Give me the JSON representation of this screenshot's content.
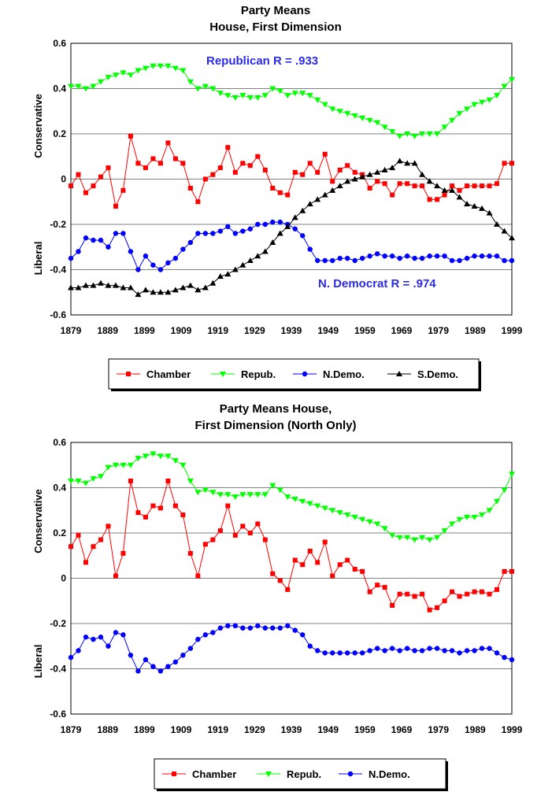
{
  "colors": {
    "chamber": "#ff0000",
    "repub": "#00ff00",
    "ndemo": "#0000ff",
    "sdemo": "#000000",
    "annotation": "#2a2ae8",
    "grid": "#808080"
  },
  "chart_data": [
    {
      "type": "line",
      "title_lines": [
        "Party Means",
        "House, First Dimension"
      ],
      "ylim": [
        -0.6,
        0.6
      ],
      "xlim": [
        1879,
        1999
      ],
      "y_ticks": [
        "0.6",
        "0.4",
        "0.2",
        "0",
        "-0.2",
        "-0.4",
        "-0.6"
      ],
      "x_ticks": [
        "1879",
        "1889",
        "1899",
        "1909",
        "1919",
        "1929",
        "1939",
        "1949",
        "1959",
        "1969",
        "1979",
        "1989",
        "1999"
      ],
      "ylabel_top": "Conservative",
      "ylabel_bottom": "Liberal",
      "annotations": [
        "Republican    R = .933",
        "N. Democrat    R = .974"
      ],
      "legend": [
        "Chamber",
        "Repub.",
        "N.Demo.",
        "S.Demo."
      ],
      "series": [
        {
          "name": "Chamber",
          "values": [
            -0.03,
            0.02,
            -0.06,
            -0.03,
            0.01,
            0.05,
            -0.12,
            -0.05,
            0.19,
            0.07,
            0.05,
            0.09,
            0.07,
            0.16,
            0.09,
            0.07,
            -0.04,
            -0.1,
            0.0,
            0.02,
            0.05,
            0.14,
            0.03,
            0.07,
            0.06,
            0.1,
            0.04,
            -0.04,
            -0.06,
            -0.07,
            0.03,
            0.02,
            0.07,
            0.03,
            0.11,
            -0.01,
            0.04,
            0.06,
            0.03,
            0.02,
            -0.04,
            -0.01,
            -0.02,
            -0.07,
            -0.02,
            -0.02,
            -0.03,
            -0.03,
            -0.09,
            -0.09,
            -0.07,
            -0.03,
            -0.05,
            -0.03,
            -0.03,
            -0.03,
            -0.03,
            -0.02,
            0.07,
            0.07
          ]
        },
        {
          "name": "Repub.",
          "values": [
            0.41,
            0.41,
            0.4,
            0.41,
            0.43,
            0.45,
            0.46,
            0.47,
            0.46,
            0.48,
            0.49,
            0.5,
            0.5,
            0.5,
            0.49,
            0.48,
            0.43,
            0.4,
            0.41,
            0.4,
            0.38,
            0.37,
            0.36,
            0.37,
            0.36,
            0.36,
            0.37,
            0.4,
            0.39,
            0.37,
            0.38,
            0.38,
            0.37,
            0.35,
            0.33,
            0.31,
            0.3,
            0.29,
            0.28,
            0.27,
            0.26,
            0.25,
            0.23,
            0.21,
            0.19,
            0.2,
            0.19,
            0.2,
            0.2,
            0.2,
            0.23,
            0.26,
            0.29,
            0.31,
            0.33,
            0.34,
            0.35,
            0.37,
            0.41,
            0.44
          ]
        },
        {
          "name": "N.Demo.",
          "values": [
            -0.35,
            -0.32,
            -0.26,
            -0.27,
            -0.27,
            -0.3,
            -0.24,
            -0.24,
            -0.32,
            -0.4,
            -0.34,
            -0.38,
            -0.4,
            -0.37,
            -0.35,
            -0.31,
            -0.28,
            -0.24,
            -0.24,
            -0.24,
            -0.23,
            -0.21,
            -0.24,
            -0.23,
            -0.22,
            -0.2,
            -0.2,
            -0.19,
            -0.19,
            -0.2,
            -0.22,
            -0.25,
            -0.31,
            -0.36,
            -0.36,
            -0.36,
            -0.35,
            -0.35,
            -0.36,
            -0.35,
            -0.34,
            -0.33,
            -0.34,
            -0.34,
            -0.35,
            -0.34,
            -0.35,
            -0.35,
            -0.34,
            -0.34,
            -0.34,
            -0.36,
            -0.36,
            -0.35,
            -0.34,
            -0.34,
            -0.34,
            -0.34,
            -0.36,
            -0.36
          ]
        },
        {
          "name": "S.Demo.",
          "values": [
            -0.48,
            -0.48,
            -0.47,
            -0.47,
            -0.46,
            -0.47,
            -0.47,
            -0.48,
            -0.48,
            -0.51,
            -0.49,
            -0.5,
            -0.5,
            -0.5,
            -0.49,
            -0.48,
            -0.47,
            -0.49,
            -0.48,
            -0.46,
            -0.43,
            -0.42,
            -0.4,
            -0.38,
            -0.36,
            -0.34,
            -0.32,
            -0.28,
            -0.24,
            -0.21,
            -0.17,
            -0.14,
            -0.11,
            -0.09,
            -0.07,
            -0.05,
            -0.03,
            -0.01,
            0.0,
            0.01,
            0.02,
            0.03,
            0.04,
            0.05,
            0.08,
            0.07,
            0.07,
            0.02,
            -0.01,
            -0.03,
            -0.05,
            -0.05,
            -0.08,
            -0.11,
            -0.12,
            -0.13,
            -0.15,
            -0.2,
            -0.23,
            -0.26
          ]
        }
      ]
    },
    {
      "type": "line",
      "title_lines": [
        "Party Means House,",
        "First Dimension (North Only)"
      ],
      "ylim": [
        -0.6,
        0.6
      ],
      "xlim": [
        1879,
        1999
      ],
      "y_ticks": [
        "0.6",
        "0.4",
        "0.2",
        "0",
        "-0.2",
        "-0.4",
        "-0.6"
      ],
      "x_ticks": [
        "1879",
        "1889",
        "1899",
        "1909",
        "1919",
        "1929",
        "1939",
        "1949",
        "1959",
        "1969",
        "1979",
        "1989",
        "1999"
      ],
      "ylabel_top": "Conservative",
      "ylabel_bottom": "Liberal",
      "annotations": [],
      "legend": [
        "Chamber",
        "Repub.",
        "N.Demo."
      ],
      "series": [
        {
          "name": "Chamber",
          "values": [
            0.14,
            0.19,
            0.07,
            0.14,
            0.17,
            0.23,
            0.01,
            0.11,
            0.43,
            0.29,
            0.27,
            0.32,
            0.31,
            0.43,
            0.32,
            0.28,
            0.11,
            0.01,
            0.15,
            0.17,
            0.21,
            0.32,
            0.19,
            0.23,
            0.2,
            0.24,
            0.17,
            0.02,
            -0.01,
            -0.05,
            0.08,
            0.06,
            0.12,
            0.07,
            0.16,
            0.01,
            0.06,
            0.08,
            0.04,
            0.03,
            -0.06,
            -0.03,
            -0.04,
            -0.12,
            -0.07,
            -0.07,
            -0.08,
            -0.07,
            -0.14,
            -0.13,
            -0.1,
            -0.06,
            -0.08,
            -0.07,
            -0.06,
            -0.06,
            -0.07,
            -0.05,
            0.03,
            0.03
          ]
        },
        {
          "name": "Repub.",
          "values": [
            0.43,
            0.43,
            0.42,
            0.44,
            0.45,
            0.49,
            0.5,
            0.5,
            0.5,
            0.53,
            0.54,
            0.55,
            0.54,
            0.54,
            0.52,
            0.5,
            0.43,
            0.38,
            0.39,
            0.38,
            0.37,
            0.37,
            0.36,
            0.37,
            0.37,
            0.37,
            0.37,
            0.41,
            0.39,
            0.36,
            0.35,
            0.34,
            0.33,
            0.32,
            0.31,
            0.3,
            0.29,
            0.28,
            0.27,
            0.26,
            0.25,
            0.24,
            0.22,
            0.19,
            0.18,
            0.18,
            0.17,
            0.18,
            0.17,
            0.18,
            0.21,
            0.24,
            0.26,
            0.27,
            0.27,
            0.28,
            0.3,
            0.34,
            0.39,
            0.46
          ]
        },
        {
          "name": "N.Demo.",
          "values": [
            -0.35,
            -0.32,
            -0.26,
            -0.27,
            -0.26,
            -0.3,
            -0.24,
            -0.25,
            -0.34,
            -0.41,
            -0.36,
            -0.39,
            -0.41,
            -0.39,
            -0.37,
            -0.34,
            -0.31,
            -0.27,
            -0.25,
            -0.24,
            -0.22,
            -0.21,
            -0.21,
            -0.22,
            -0.22,
            -0.21,
            -0.22,
            -0.22,
            -0.22,
            -0.21,
            -0.23,
            -0.25,
            -0.3,
            -0.32,
            -0.33,
            -0.33,
            -0.33,
            -0.33,
            -0.33,
            -0.33,
            -0.32,
            -0.31,
            -0.32,
            -0.31,
            -0.32,
            -0.31,
            -0.32,
            -0.32,
            -0.31,
            -0.31,
            -0.32,
            -0.32,
            -0.33,
            -0.32,
            -0.32,
            -0.31,
            -0.31,
            -0.33,
            -0.35,
            -0.36
          ]
        }
      ]
    }
  ]
}
